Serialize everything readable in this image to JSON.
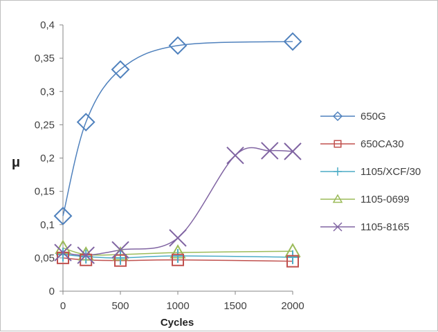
{
  "chart_data": {
    "type": "line",
    "xlabel": "Cycles",
    "ylabel": "μ",
    "xlim": [
      0,
      2000
    ],
    "ylim": [
      0,
      0.4
    ],
    "xticks": [
      0,
      500,
      1000,
      1500,
      2000
    ],
    "yticks": [
      0,
      0.05,
      0.1,
      0.15,
      0.2,
      0.25,
      0.3,
      0.35,
      0.4
    ],
    "x_tick_labels": [
      "0",
      "500",
      "1000",
      "1500",
      "2000"
    ],
    "y_tick_labels": [
      "0",
      "0,05",
      "0,1",
      "0,15",
      "0,2",
      "0,25",
      "0,3",
      "0,35",
      "0,4"
    ],
    "legend_position": "right",
    "grid": false,
    "series": [
      {
        "name": "650G",
        "color": "#4f81bd",
        "marker": "diamond",
        "x": [
          0,
          200,
          500,
          1000,
          2000
        ],
        "y": [
          0.113,
          0.254,
          0.333,
          0.369,
          0.375
        ]
      },
      {
        "name": "650CA30",
        "color": "#c0504d",
        "marker": "square",
        "x": [
          0,
          200,
          500,
          1000,
          2000
        ],
        "y": [
          0.05,
          0.047,
          0.046,
          0.047,
          0.045
        ]
      },
      {
        "name": "1105/XCF/30",
        "color": "#4bacc6",
        "marker": "plus",
        "x": [
          0,
          200,
          500,
          1000,
          2000
        ],
        "y": [
          0.055,
          0.052,
          0.05,
          0.053,
          0.051
        ]
      },
      {
        "name": "1105-0699",
        "color": "#9bbb59",
        "marker": "triangle",
        "x": [
          0,
          200,
          500,
          1000,
          2000
        ],
        "y": [
          0.065,
          0.055,
          0.055,
          0.058,
          0.06
        ]
      },
      {
        "name": "1105-8165",
        "color": "#8064a2",
        "marker": "x",
        "x": [
          0,
          200,
          500,
          1000,
          1500,
          1800,
          2000
        ],
        "y": [
          0.058,
          0.054,
          0.062,
          0.08,
          0.204,
          0.211,
          0.21
        ]
      }
    ]
  }
}
